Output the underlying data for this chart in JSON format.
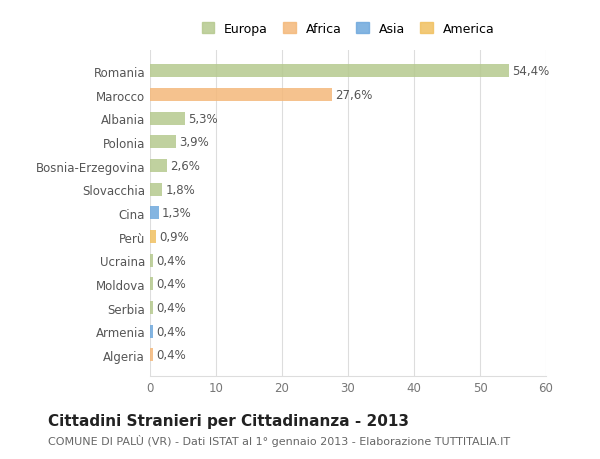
{
  "categories": [
    "Algeria",
    "Armenia",
    "Serbia",
    "Moldova",
    "Ucraina",
    "Perù",
    "Cina",
    "Slovacchia",
    "Bosnia-Erzegovina",
    "Polonia",
    "Albania",
    "Marocco",
    "Romania"
  ],
  "values": [
    0.4,
    0.4,
    0.4,
    0.4,
    0.4,
    0.9,
    1.3,
    1.8,
    2.6,
    3.9,
    5.3,
    27.6,
    54.4
  ],
  "labels": [
    "0,4%",
    "0,4%",
    "0,4%",
    "0,4%",
    "0,4%",
    "0,9%",
    "1,3%",
    "1,8%",
    "2,6%",
    "3,9%",
    "5,3%",
    "27,6%",
    "54,4%"
  ],
  "colors": [
    "#f4b87a",
    "#6fa8dc",
    "#b5c98e",
    "#b5c98e",
    "#b5c98e",
    "#f0c060",
    "#6fa8dc",
    "#b5c98e",
    "#b5c98e",
    "#b5c98e",
    "#b5c98e",
    "#f4b87a",
    "#b5c98e"
  ],
  "legend": [
    {
      "label": "Europa",
      "color": "#b5c98e"
    },
    {
      "label": "Africa",
      "color": "#f4b87a"
    },
    {
      "label": "Asia",
      "color": "#6fa8dc"
    },
    {
      "label": "America",
      "color": "#f0c060"
    }
  ],
  "title": "Cittadini Stranieri per Cittadinanza - 2013",
  "subtitle": "COMUNE DI PALÙ (VR) - Dati ISTAT al 1° gennaio 2013 - Elaborazione TUTTITALIA.IT",
  "xlim": [
    0,
    60
  ],
  "xticks": [
    0,
    10,
    20,
    30,
    40,
    50,
    60
  ],
  "bg_color": "#ffffff",
  "grid_color": "#dddddd",
  "bar_height": 0.55,
  "label_fontsize": 8.5,
  "tick_fontsize": 8.5,
  "title_fontsize": 11,
  "subtitle_fontsize": 8
}
